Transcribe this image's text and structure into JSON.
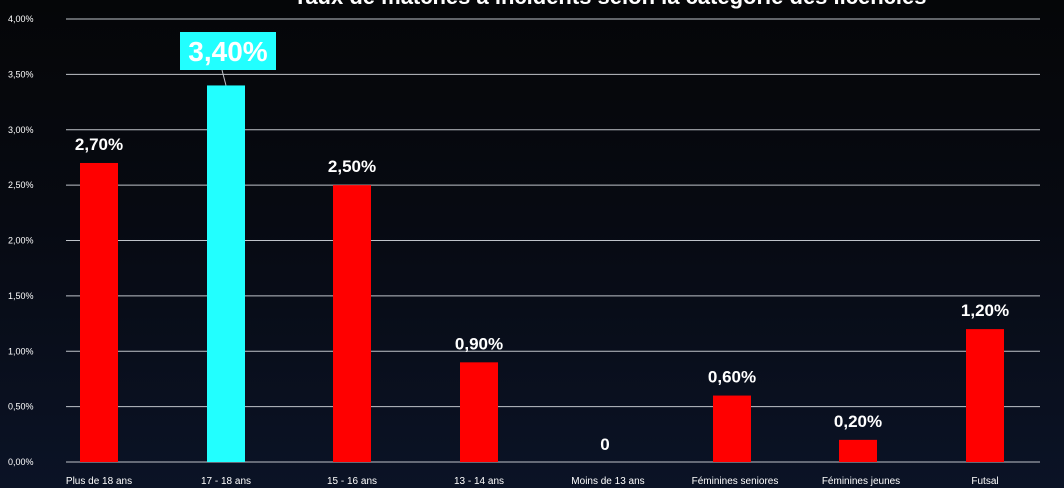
{
  "chart_data": {
    "type": "bar",
    "title": "Taux de matches à incidents selon la catégorie des licenciés",
    "categories": [
      "Plus de 18 ans",
      "17 - 18 ans",
      "15 - 16 ans",
      "13 - 14 ans",
      "Moins de 13 ans",
      "Féminines  seniores",
      "Féminines  jeunes",
      "Futsal"
    ],
    "values": [
      2.7,
      3.4,
      2.5,
      0.9,
      0,
      0.6,
      0.2,
      1.2
    ],
    "data_labels": [
      "2,70%",
      "3,40%",
      "2,50%",
      "0,90%",
      "0",
      "0,60%",
      "0,20%",
      "1,20%"
    ],
    "highlight_index": 1,
    "ylim": [
      0,
      4
    ],
    "yticks": [
      0,
      0.5,
      1.0,
      1.5,
      2.0,
      2.5,
      3.0,
      3.5,
      4.0
    ],
    "ytick_labels": [
      "0,00%",
      "0,50%",
      "1,00%",
      "1,50%",
      "2,00%",
      "2,50%",
      "3,00%",
      "3,50%",
      "4,00%"
    ],
    "xlabel": "",
    "ylabel": "",
    "grid": true,
    "legend": "none",
    "colors": {
      "bar": "#ff0000",
      "highlight_bar": "#22ffff",
      "highlight_label_bg": "#22ffff",
      "grid": "#bfc3c9",
      "text": "#ffffff"
    }
  }
}
